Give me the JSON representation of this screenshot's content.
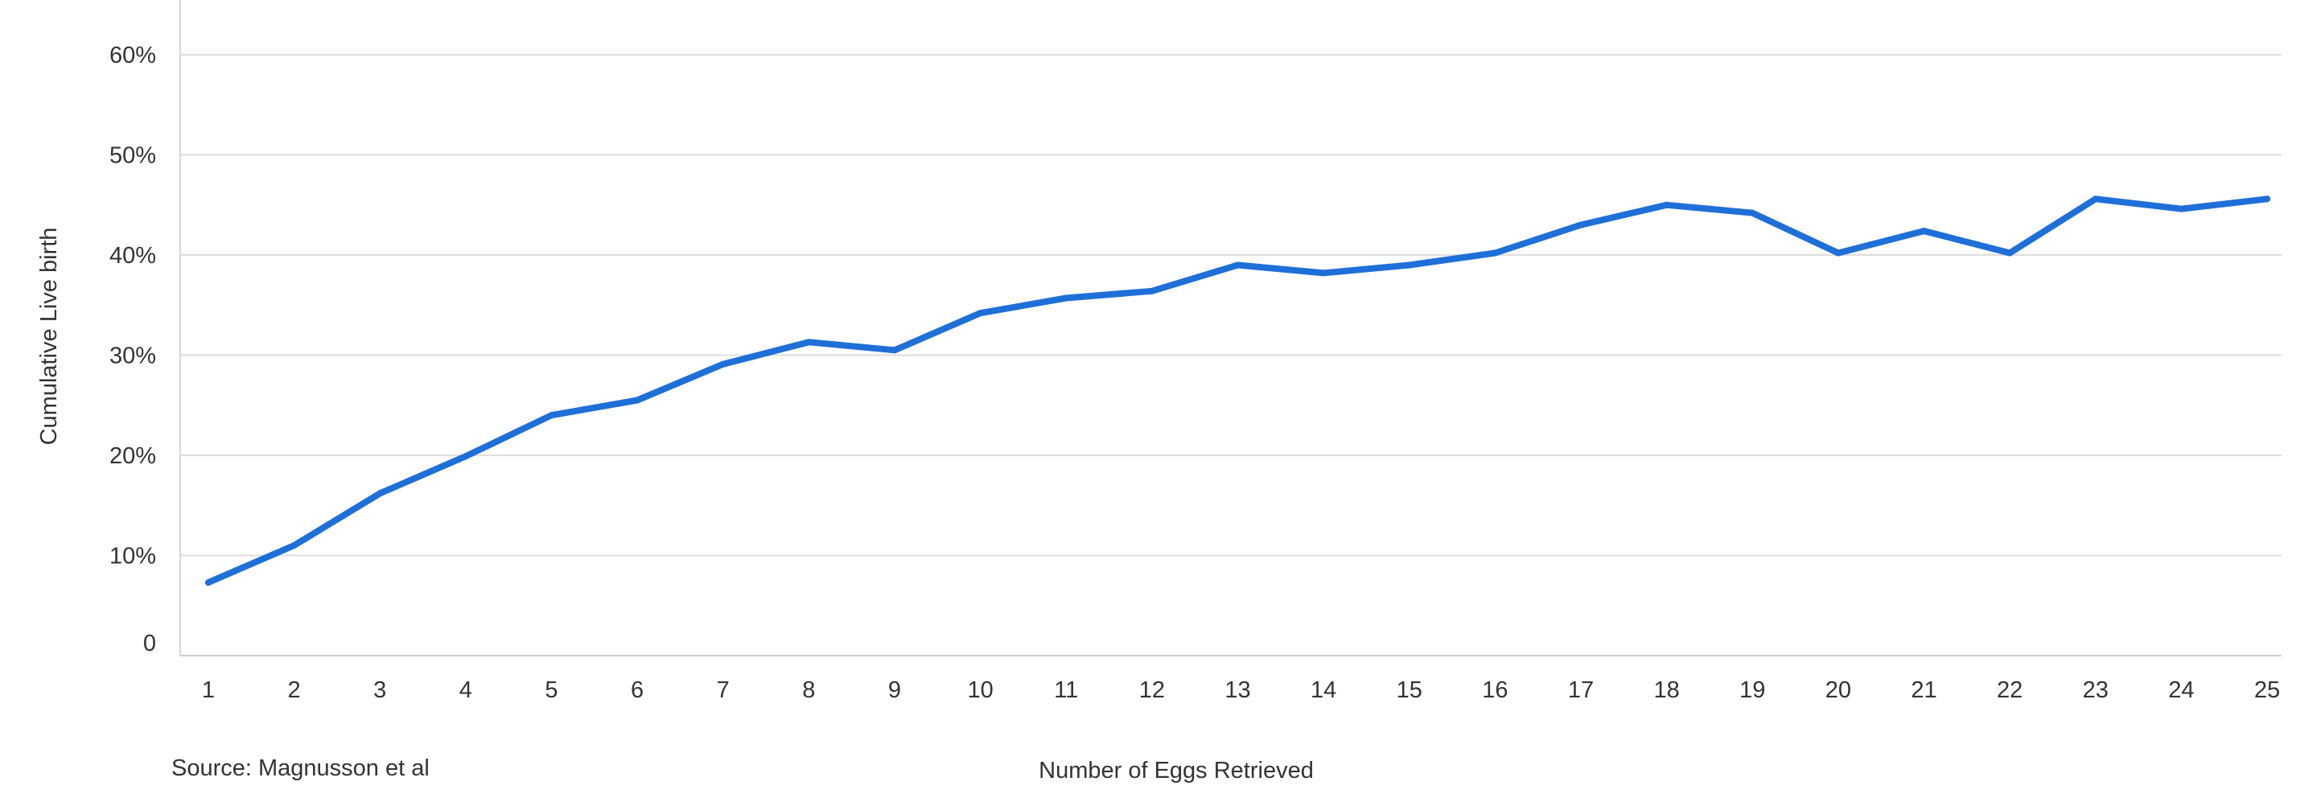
{
  "chart_data": {
    "type": "line",
    "title": "",
    "xlabel": "Number of Eggs Retrieved",
    "ylabel": "Cumulative Live birth",
    "source": "Source: Magnusson et al",
    "categories": [
      "1",
      "2",
      "3",
      "4",
      "5",
      "6",
      "7",
      "8",
      "9",
      "10",
      "11",
      "12",
      "13",
      "14",
      "15",
      "16",
      "17",
      "18",
      "19",
      "20",
      "21",
      "22",
      "23",
      "24",
      "25"
    ],
    "y_ticks": [
      {
        "value": 0,
        "label": "0"
      },
      {
        "value": 10,
        "label": "10%"
      },
      {
        "value": 20,
        "label": "20%"
      },
      {
        "value": 30,
        "label": "30%"
      },
      {
        "value": 40,
        "label": "40%"
      },
      {
        "value": 50,
        "label": "50%"
      },
      {
        "value": 60,
        "label": "60%"
      }
    ],
    "ylim": [
      0,
      65
    ],
    "grid": true,
    "legend": "none",
    "series": [
      {
        "color": "#1f6fd8",
        "values": [
          7.3,
          11,
          16.2,
          19.9,
          24,
          25.5,
          29.1,
          31.3,
          30.5,
          34.2,
          35.7,
          36.4,
          39,
          38.2,
          39,
          40.2,
          43,
          45,
          44.2,
          40.2,
          42.4,
          40.2,
          45.6,
          44.6,
          45.6
        ]
      }
    ],
    "x_positions": [
      1,
      2,
      3,
      4,
      5,
      6,
      7,
      8,
      9,
      10,
      11,
      12,
      13,
      14,
      15,
      16,
      17,
      18,
      19,
      20,
      21,
      22,
      23,
      24,
      25
    ]
  }
}
